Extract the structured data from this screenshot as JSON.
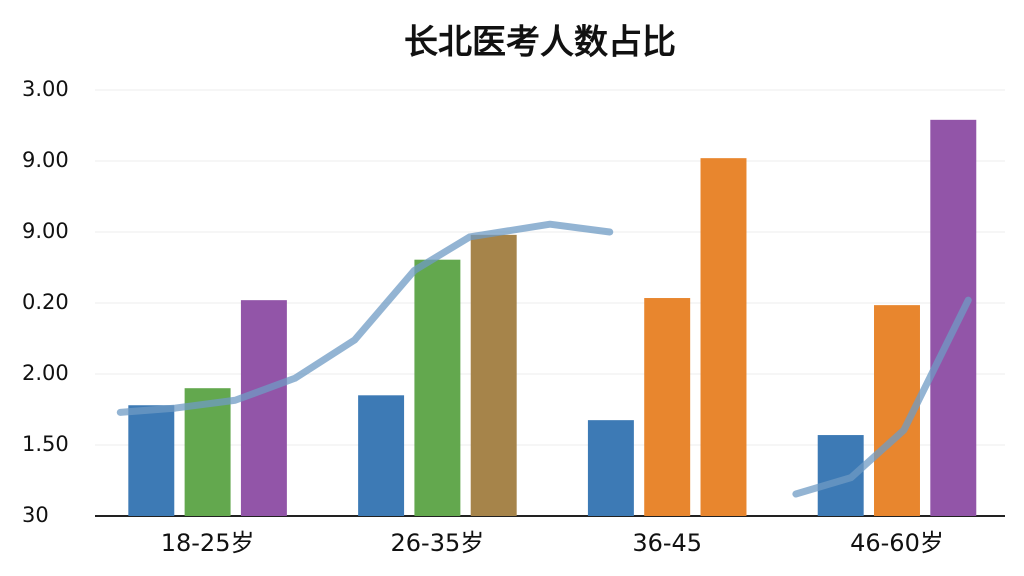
{
  "chart_data": {
    "type": "bar",
    "title": "长北医考人数占比",
    "categories": [
      "18-25岁",
      "26-35岁",
      "36-45",
      "46-60岁"
    ],
    "series": [
      {
        "color": "#3d7ab5",
        "values": [
          1.56,
          1.7,
          1.35,
          1.14
        ]
      },
      {
        "colors": [
          "#63a84e",
          "#63a84e",
          "#e8862e",
          "#e8862e"
        ],
        "values": [
          1.8,
          3.61,
          3.07,
          2.97
        ]
      },
      {
        "colors": [
          "#9255a8",
          "#a6844a",
          "#e8862e",
          "#9255a8"
        ],
        "values": [
          3.04,
          3.96,
          5.04,
          5.58
        ]
      }
    ],
    "line": {
      "color": "#6f9bc4",
      "x": [
        -0.38,
        -0.14,
        0.12,
        0.38,
        0.64,
        0.9,
        1.14,
        1.49,
        1.75,
        null,
        2.56,
        2.8,
        3.03,
        3.31
      ],
      "values": [
        1.46,
        1.52,
        1.63,
        1.94,
        2.48,
        3.46,
        3.93,
        4.11,
        4.0,
        null,
        0.31,
        0.54,
        1.21,
        3.04
      ]
    },
    "xlim": [
      -0.49,
      3.47
    ],
    "ylim": [
      0,
      6
    ],
    "yticks": [
      {
        "value": 0,
        "label": "30"
      },
      {
        "value": 1,
        "label": "1.50"
      },
      {
        "value": 2,
        "label": "2.00"
      },
      {
        "value": 3,
        "label": "0.20"
      },
      {
        "value": 4,
        "label": "9.00"
      },
      {
        "value": 5,
        "label": "9.00"
      },
      {
        "value": 6,
        "label": "3.00"
      }
    ],
    "grid": true
  }
}
